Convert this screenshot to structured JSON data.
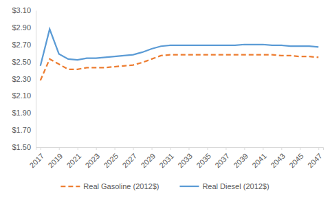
{
  "chart_data": {
    "type": "line",
    "x": [
      2017,
      2018,
      2019,
      2020,
      2021,
      2022,
      2023,
      2024,
      2025,
      2026,
      2027,
      2028,
      2029,
      2030,
      2031,
      2032,
      2033,
      2034,
      2035,
      2036,
      2037,
      2038,
      2039,
      2040,
      2041,
      2042,
      2043,
      2044,
      2045,
      2046,
      2047
    ],
    "series": [
      {
        "name": "Real Gasoline (2012$)",
        "color": "#ed7d31",
        "line_style": "dashed",
        "values": [
          2.28,
          2.53,
          2.47,
          2.41,
          2.41,
          2.43,
          2.43,
          2.43,
          2.44,
          2.45,
          2.46,
          2.49,
          2.53,
          2.57,
          2.58,
          2.58,
          2.58,
          2.58,
          2.58,
          2.58,
          2.58,
          2.58,
          2.58,
          2.58,
          2.58,
          2.58,
          2.57,
          2.57,
          2.56,
          2.56,
          2.55
        ]
      },
      {
        "name": "Real Diesel (2012$)",
        "color": "#5b9bd5",
        "line_style": "solid",
        "values": [
          2.45,
          2.88,
          2.59,
          2.53,
          2.52,
          2.54,
          2.54,
          2.55,
          2.56,
          2.57,
          2.58,
          2.61,
          2.65,
          2.68,
          2.69,
          2.69,
          2.69,
          2.69,
          2.69,
          2.69,
          2.69,
          2.69,
          2.7,
          2.7,
          2.7,
          2.69,
          2.69,
          2.68,
          2.68,
          2.68,
          2.67
        ]
      }
    ],
    "xlim": [
      2016.5,
      2047.5
    ],
    "xticks": [
      2017,
      2019,
      2021,
      2023,
      2025,
      2027,
      2029,
      2031,
      2033,
      2035,
      2037,
      2039,
      2041,
      2043,
      2045,
      2047
    ],
    "ylim": [
      1.5,
      3.1
    ],
    "yticks": [
      {
        "value": 1.5,
        "label": "$1.50"
      },
      {
        "value": 1.7,
        "label": "$1.70"
      },
      {
        "value": 1.9,
        "label": "$1.90"
      },
      {
        "value": 2.1,
        "label": "$2.10"
      },
      {
        "value": 2.3,
        "label": "$2.30"
      },
      {
        "value": 2.5,
        "label": "$2.50"
      },
      {
        "value": 2.7,
        "label": "$2.70"
      },
      {
        "value": 2.9,
        "label": "$2.90"
      },
      {
        "value": 3.1,
        "label": "$3.10"
      }
    ],
    "grid": false,
    "legend": "bottom"
  }
}
